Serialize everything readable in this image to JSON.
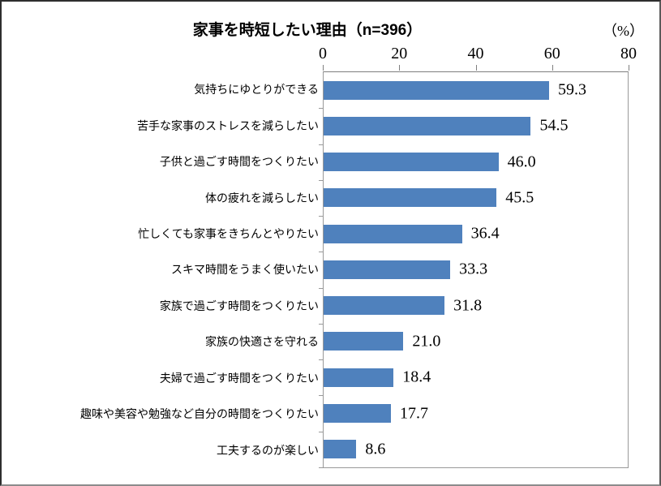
{
  "title": "家事を時短したい理由（n=396）",
  "unit_label": "（%）",
  "chart_data": {
    "type": "bar",
    "orientation": "horizontal",
    "title": "家事を時短したい理由（n=396）",
    "xlabel": "（%）",
    "xlim": [
      0,
      80
    ],
    "xticks": [
      0,
      20,
      40,
      60,
      80
    ],
    "grid": false,
    "legend": false,
    "bar_color": "#4F81BD",
    "categories": [
      "気持ちにゆとりができる",
      "苦手な家事のストレスを減らしたい",
      "子供と過ごす時間をつくりたい",
      "体の疲れを減らしたい",
      "忙しくても家事をきちんとやりたい",
      "スキマ時間をうまく使いたい",
      "家族で過ごす時間をつくりたい",
      "家族の快適さを守れる",
      "夫婦で過ごす時間をつくりたい",
      "趣味や美容や勉強など自分の時間をつくりたい",
      "工夫するのが楽しい"
    ],
    "values": [
      59.3,
      54.5,
      46.0,
      45.5,
      36.4,
      33.3,
      31.8,
      21.0,
      18.4,
      17.7,
      8.6
    ],
    "value_labels": [
      "59.3",
      "54.5",
      "46.0",
      "45.5",
      "36.4",
      "33.3",
      "31.8",
      "21.0",
      "18.4",
      "17.7",
      "8.6"
    ]
  }
}
